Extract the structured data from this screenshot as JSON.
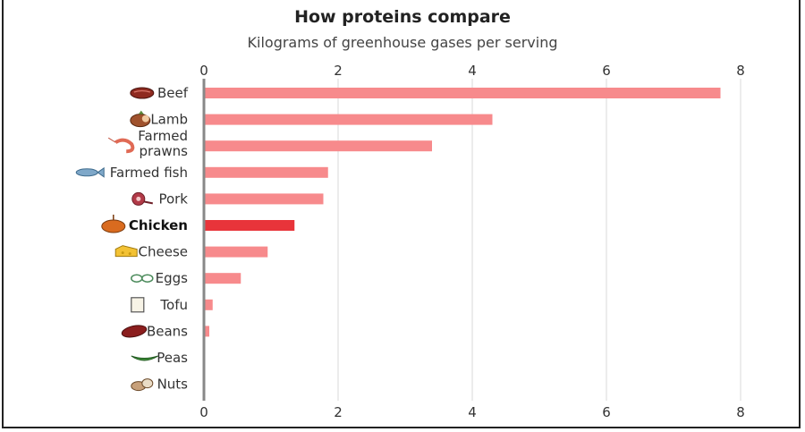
{
  "chart_data": {
    "type": "bar",
    "orientation": "horizontal",
    "title": "How proteins compare",
    "subtitle": "Kilograms of greenhouse gases per serving",
    "xlim": [
      0,
      8
    ],
    "xticks": [
      "0",
      "2",
      "4",
      "6",
      "8"
    ],
    "grid": true,
    "categories": [
      {
        "label": "Beef",
        "value": 7.7,
        "icon": "steak-icon"
      },
      {
        "label": "Lamb",
        "value": 4.3,
        "icon": "lamb-roast-icon"
      },
      {
        "label": "Farmed prawns",
        "value": 3.4,
        "icon": "prawn-icon"
      },
      {
        "label": "Farmed fish",
        "value": 1.85,
        "icon": "fish-icon"
      },
      {
        "label": "Pork",
        "value": 1.78,
        "icon": "ham-icon"
      },
      {
        "label": "Chicken",
        "value": 1.35,
        "icon": "chicken-roast-icon",
        "highlight": true
      },
      {
        "label": "Cheese",
        "value": 0.95,
        "icon": "cheese-icon"
      },
      {
        "label": "Eggs",
        "value": 0.55,
        "icon": "eggs-icon"
      },
      {
        "label": "Tofu",
        "value": 0.13,
        "icon": "tofu-icon"
      },
      {
        "label": "Beans",
        "value": 0.08,
        "icon": "bean-icon"
      },
      {
        "label": "Peas",
        "value": 0.02,
        "icon": "pea-pod-icon"
      },
      {
        "label": "Nuts",
        "value": 0.01,
        "icon": "nuts-icon"
      }
    ],
    "colors": {
      "bar": "#f78a8c",
      "highlight": "#e8343a",
      "grid": "#e6e6e6",
      "axis": "#888888"
    }
  }
}
